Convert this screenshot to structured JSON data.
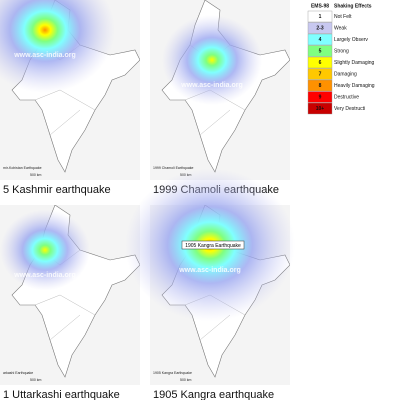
{
  "panels": [
    {
      "caption": "5 Kashmir earthquake",
      "map_label": "mir-Kohistan Earthquake",
      "watermark": "www.asc-india.org",
      "scale": "500 km"
    },
    {
      "caption": "1999 Chamoli earthquake",
      "map_label": "1999 Chamoli Earthquake",
      "watermark": "www.asc-india.org",
      "scale": "500 km"
    },
    {
      "caption": "1 Uttarkashi earthquake",
      "map_label": "arkashi Earthquake",
      "watermark": "www.asc-india.org",
      "scale": "500 km"
    },
    {
      "caption": "1905 Kangra earthquake",
      "map_label": "1905 Kangra Earthquake",
      "box_label": "1905 Kangra Earthquake",
      "watermark": "www.asc-india.org",
      "scale": "500 km"
    }
  ],
  "legend": {
    "scale_header": "EMS-98",
    "effect_header": "Shaking Effects",
    "rows": [
      {
        "level": "1",
        "effect": "Not Felt",
        "color": "#ffffff"
      },
      {
        "level": "2-3",
        "effect": "Weak",
        "color": "#c8c8f0"
      },
      {
        "level": "4",
        "effect": "Largely Observ",
        "color": "#80ffff"
      },
      {
        "level": "5",
        "effect": "Strong",
        "color": "#80ff80"
      },
      {
        "level": "6",
        "effect": "Slightly Damaging",
        "color": "#ffff00"
      },
      {
        "level": "7",
        "effect": "Damaging",
        "color": "#ffc800"
      },
      {
        "level": "8",
        "effect": "Heavily Damaging",
        "color": "#ff9100"
      },
      {
        "level": "9",
        "effect": "Destructive",
        "color": "#ff0000"
      },
      {
        "level": "10+",
        "effect": "Very Destructi",
        "color": "#c80000"
      }
    ]
  }
}
